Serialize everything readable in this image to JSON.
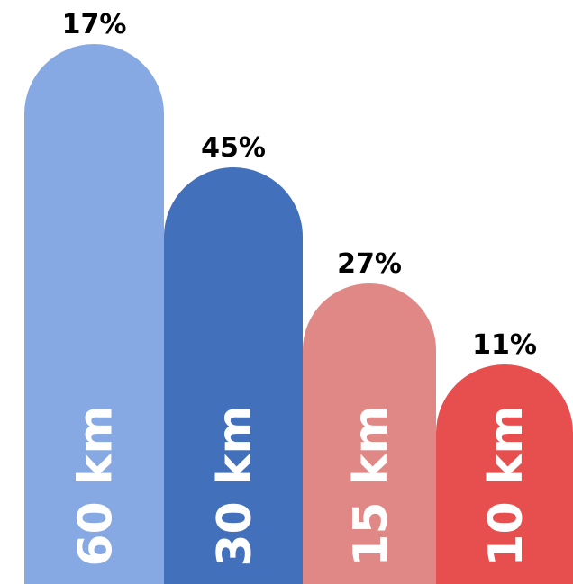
{
  "chart_data": {
    "type": "bar",
    "title": "",
    "xlabel": "",
    "ylabel": "",
    "categories": [
      "60 km",
      "30 km",
      "15 km",
      "10 km"
    ],
    "value_labels": [
      "17%",
      "45%",
      "27%",
      "11%"
    ],
    "bar_colors": [
      "#86a9e3",
      "#4270bb",
      "#e08886",
      "#e74e4e"
    ],
    "label_color": "#000000",
    "category_text_color": "#ffffff",
    "grid": false,
    "legend": "none"
  }
}
